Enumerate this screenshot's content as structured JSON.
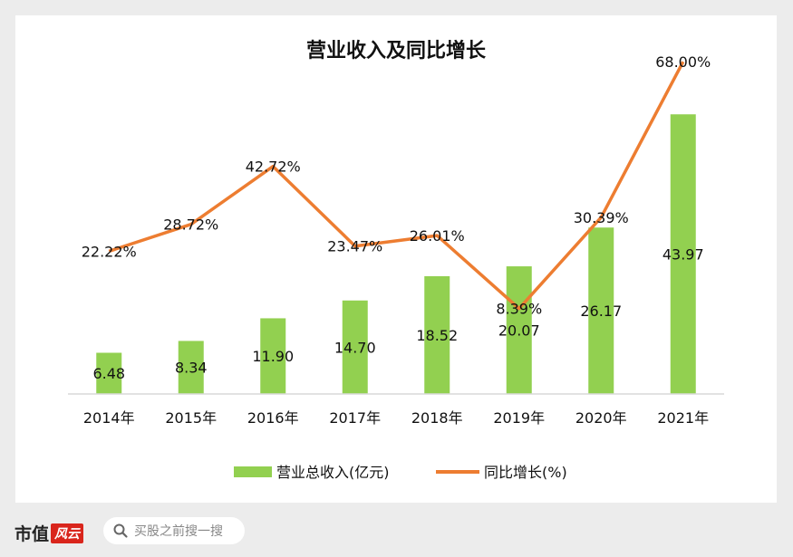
{
  "chart_data": {
    "type": "bar",
    "title": "营业收入及同比增长",
    "categories": [
      "2014年",
      "2015年",
      "2016年",
      "2017年",
      "2018年",
      "2019年",
      "2020年",
      "2021年"
    ],
    "series": [
      {
        "name": "营业总收入(亿元)",
        "type": "bar",
        "color": "#92d050",
        "values": [
          6.48,
          8.34,
          11.9,
          14.7,
          18.52,
          20.07,
          26.17,
          43.97
        ],
        "labels": [
          "6.48",
          "8.34",
          "11.90",
          "14.70",
          "18.52",
          "20.07",
          "26.17",
          "43.97"
        ]
      },
      {
        "name": "同比增长(%)",
        "type": "line",
        "color": "#ed7d31",
        "values": [
          22.22,
          28.72,
          42.72,
          23.47,
          26.01,
          8.39,
          30.39,
          68.0
        ],
        "labels": [
          "22.22%",
          "28.72%",
          "42.72%",
          "23.47%",
          "26.01%",
          "8.39%",
          "30.39%",
          "68.00%"
        ]
      }
    ],
    "legend": "bottom",
    "grid": false
  },
  "footer": {
    "brand": "市值",
    "brand_mark": "风云",
    "search_placeholder": "买股之前搜一搜"
  }
}
